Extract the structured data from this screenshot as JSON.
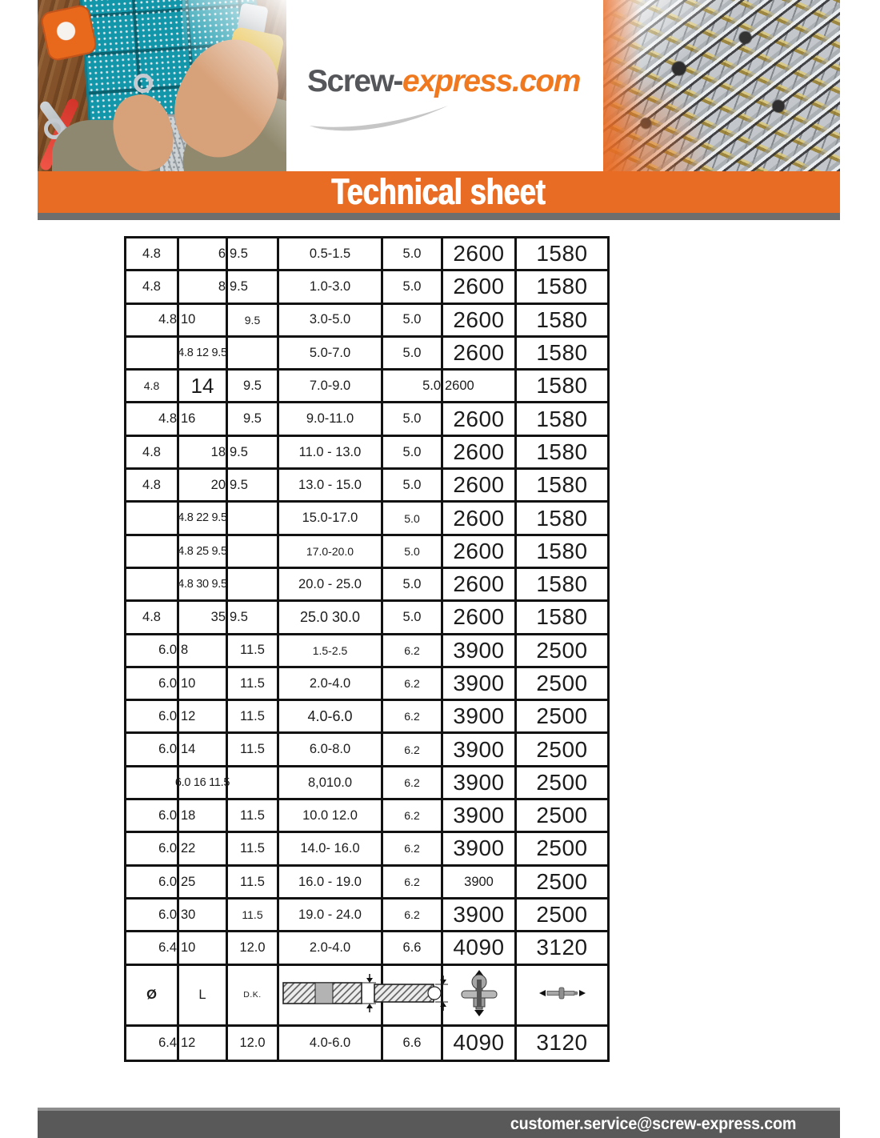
{
  "logo": {
    "prefix": "Screw-",
    "suffix": "express.com",
    "prefix_color": "#54565a",
    "suffix_color": "#f0791f"
  },
  "banner": {
    "title": "Technical sheet",
    "bg_color": "#e96c24"
  },
  "footer": {
    "email": "customer.service@screw-express.com",
    "bg_color": "#595959"
  },
  "colors": {
    "table_border": "#121212",
    "strip_gray": "#6e6e6e"
  },
  "table": {
    "legend_icons": [
      "clamped-plates-icon",
      "drilled-plate-icon",
      "rivet-vertical-arrows-icon",
      "rivet-horizontal-arrows-icon"
    ],
    "rows": [
      {
        "cells": [
          {
            "t": "4.8",
            "c": "al-c fs-s"
          },
          {
            "t": "6",
            "c": "al-r fs-s"
          },
          {
            "t": "9.5",
            "c": "al-l fs-s"
          },
          {
            "t": "0.5-1.5",
            "c": "al-c fs-s"
          },
          {
            "t": "5.0",
            "c": "al-c fs-s"
          },
          {
            "t": "2600",
            "c": "al-c fs-b"
          },
          {
            "t": "1580",
            "c": "al-c fs-b"
          }
        ]
      },
      {
        "cells": [
          {
            "t": "4.8",
            "c": "al-c fs-s"
          },
          {
            "t": "8",
            "c": "al-r fs-s"
          },
          {
            "t": "9.5",
            "c": "al-l fs-s"
          },
          {
            "t": "1.0-3.0",
            "c": "al-c fs-s"
          },
          {
            "t": "5.0",
            "c": "al-c fs-s"
          },
          {
            "t": "2600",
            "c": "al-c fs-b"
          },
          {
            "t": "1580",
            "c": "al-c fs-b"
          }
        ]
      },
      {
        "cells": [
          {
            "t": "4.8",
            "c": "al-r fs-s"
          },
          {
            "t": "10",
            "c": "al-l fs-s"
          },
          {
            "t": "9.5",
            "c": "al-c fs-xs"
          },
          {
            "t": "3.0-5.0",
            "c": "al-c fs-s"
          },
          {
            "t": "5.0",
            "c": "al-c fs-s"
          },
          {
            "t": "2600",
            "c": "al-c fs-b"
          },
          {
            "t": "1580",
            "c": "al-c fs-b"
          }
        ]
      },
      {
        "cells": [
          {
            "t": "",
            "c": ""
          },
          {
            "t": "4.8 12 9.5",
            "c": "al-c fs-sp spanover"
          },
          {
            "t": "",
            "c": ""
          },
          {
            "t": "5.0-7.0",
            "c": "al-c fs-s"
          },
          {
            "t": "5.0",
            "c": "al-c fs-s"
          },
          {
            "t": "2600",
            "c": "al-c fs-b"
          },
          {
            "t": "1580",
            "c": "al-c fs-b"
          }
        ]
      },
      {
        "cells": [
          {
            "t": "4.8",
            "c": "al-c fs-xs"
          },
          {
            "t": "14",
            "c": "al-c fs-lg"
          },
          {
            "t": "9.5",
            "c": "al-c fs-s"
          },
          {
            "t": "7.0-9.0",
            "c": "al-c fs-s"
          },
          {
            "t": "5.0",
            "c": "al-r fs-s"
          },
          {
            "t": "2600",
            "c": "al-l fs-s"
          },
          {
            "t": "1580",
            "c": "al-c fs-b"
          }
        ]
      },
      {
        "cells": [
          {
            "t": "4.8",
            "c": "al-r fs-s"
          },
          {
            "t": "16",
            "c": "al-l fs-s"
          },
          {
            "t": "9.5",
            "c": "al-c fs-s"
          },
          {
            "t": "9.0-11.0",
            "c": "al-c fs-s"
          },
          {
            "t": "5.0",
            "c": "al-c fs-s"
          },
          {
            "t": "2600",
            "c": "al-c fs-b"
          },
          {
            "t": "1580",
            "c": "al-c fs-b"
          }
        ]
      },
      {
        "cells": [
          {
            "t": "4.8",
            "c": "al-c fs-s"
          },
          {
            "t": "18",
            "c": "al-r fs-s"
          },
          {
            "t": "9.5",
            "c": "al-l fs-s"
          },
          {
            "t": "11.0 - 13.0",
            "c": "al-c fs-s"
          },
          {
            "t": "5.0",
            "c": "al-c fs-s"
          },
          {
            "t": "2600",
            "c": "al-c fs-b"
          },
          {
            "t": "1580",
            "c": "al-c fs-b"
          }
        ]
      },
      {
        "cells": [
          {
            "t": "4.8",
            "c": "al-c fs-s"
          },
          {
            "t": "20",
            "c": "al-r fs-s"
          },
          {
            "t": "9.5",
            "c": "al-l fs-s"
          },
          {
            "t": "13.0 - 15.0",
            "c": "al-c fs-s"
          },
          {
            "t": "5.0",
            "c": "al-c fs-s"
          },
          {
            "t": "2600",
            "c": "al-c fs-b"
          },
          {
            "t": "1580",
            "c": "al-c fs-b"
          }
        ]
      },
      {
        "cells": [
          {
            "t": "",
            "c": ""
          },
          {
            "t": "4.8 22 9.5",
            "c": "al-c fs-sp spanover"
          },
          {
            "t": "",
            "c": ""
          },
          {
            "t": "15.0-17.0",
            "c": "al-c fs-s"
          },
          {
            "t": "5.0",
            "c": "al-c fs-xs"
          },
          {
            "t": "2600",
            "c": "al-c fs-b"
          },
          {
            "t": "1580",
            "c": "al-c fs-b"
          }
        ]
      },
      {
        "cells": [
          {
            "t": "",
            "c": ""
          },
          {
            "t": "4.8 25 9.5",
            "c": "al-c fs-sp spanover"
          },
          {
            "t": "",
            "c": ""
          },
          {
            "t": "17.0-20.0",
            "c": "al-c fs-xs"
          },
          {
            "t": "5.0",
            "c": "al-c fs-xs"
          },
          {
            "t": "2600",
            "c": "al-c fs-b"
          },
          {
            "t": "1580",
            "c": "al-c fs-b"
          }
        ]
      },
      {
        "cells": [
          {
            "t": "",
            "c": ""
          },
          {
            "t": "4.8 30 9.5",
            "c": "al-c fs-sp spanover"
          },
          {
            "t": "",
            "c": ""
          },
          {
            "t": "20.0 - 25.0",
            "c": "al-c fs-s"
          },
          {
            "t": "5.0",
            "c": "al-c fs-s"
          },
          {
            "t": "2600",
            "c": "al-c fs-b"
          },
          {
            "t": "1580",
            "c": "al-c fs-b"
          }
        ]
      },
      {
        "cells": [
          {
            "t": "4.8",
            "c": "al-c fs-s"
          },
          {
            "t": "35",
            "c": "al-r fs-s"
          },
          {
            "t": "9.5",
            "c": "al-l fs-s"
          },
          {
            "t": "25.0 30.0",
            "c": "al-c fs-md"
          },
          {
            "t": "5.0",
            "c": "al-c fs-s"
          },
          {
            "t": "2600",
            "c": "al-c fs-b"
          },
          {
            "t": "1580",
            "c": "al-c fs-b"
          }
        ]
      },
      {
        "cells": [
          {
            "t": "6.0",
            "c": "al-r fs-s"
          },
          {
            "t": "8",
            "c": "al-l fs-s"
          },
          {
            "t": "11.5",
            "c": "al-c fs-s"
          },
          {
            "t": "1.5-2.5",
            "c": "al-c fs-xs"
          },
          {
            "t": "6.2",
            "c": "al-c fs-xs"
          },
          {
            "t": "3900",
            "c": "al-c fs-b"
          },
          {
            "t": "2500",
            "c": "al-c fs-b"
          }
        ]
      },
      {
        "cells": [
          {
            "t": "6.0",
            "c": "al-r fs-s"
          },
          {
            "t": "10",
            "c": "al-l fs-s"
          },
          {
            "t": "11.5",
            "c": "al-c fs-s"
          },
          {
            "t": "2.0-4.0",
            "c": "al-c fs-s"
          },
          {
            "t": "6.2",
            "c": "al-c fs-xs"
          },
          {
            "t": "3900",
            "c": "al-c fs-b"
          },
          {
            "t": "2500",
            "c": "al-c fs-b"
          }
        ]
      },
      {
        "cells": [
          {
            "t": "6.0",
            "c": "al-r fs-s"
          },
          {
            "t": "12",
            "c": "al-l fs-s"
          },
          {
            "t": "11.5",
            "c": "al-c fs-s"
          },
          {
            "t": "4.0-6.0",
            "c": "al-c fs-md"
          },
          {
            "t": "6.2",
            "c": "al-c fs-xs"
          },
          {
            "t": "3900",
            "c": "al-c fs-b"
          },
          {
            "t": "2500",
            "c": "al-c fs-b"
          }
        ]
      },
      {
        "cells": [
          {
            "t": "6.0",
            "c": "al-r fs-s"
          },
          {
            "t": "14",
            "c": "al-l fs-s"
          },
          {
            "t": "11.5",
            "c": "al-c fs-s"
          },
          {
            "t": "6.0-8.0",
            "c": "al-c fs-s"
          },
          {
            "t": "6.2",
            "c": "al-c fs-xs"
          },
          {
            "t": "3900",
            "c": "al-c fs-b"
          },
          {
            "t": "2500",
            "c": "al-c fs-b"
          }
        ]
      },
      {
        "cells": [
          {
            "t": "",
            "c": ""
          },
          {
            "t": "6.0 16 11.5",
            "c": "al-c fs-sp spanover"
          },
          {
            "t": "",
            "c": ""
          },
          {
            "t": "8,010.0",
            "c": "al-c fs-s"
          },
          {
            "t": "6.2",
            "c": "al-c fs-xs"
          },
          {
            "t": "3900",
            "c": "al-c fs-b"
          },
          {
            "t": "2500",
            "c": "al-c fs-b"
          }
        ]
      },
      {
        "cells": [
          {
            "t": "6.0",
            "c": "al-r fs-s"
          },
          {
            "t": "18",
            "c": "al-l fs-s"
          },
          {
            "t": "11.5",
            "c": "al-c fs-s"
          },
          {
            "t": "10.0 12.0",
            "c": "al-c fs-s"
          },
          {
            "t": "6.2",
            "c": "al-c fs-xs"
          },
          {
            "t": "3900",
            "c": "al-c fs-b"
          },
          {
            "t": "2500",
            "c": "al-c fs-b"
          }
        ]
      },
      {
        "cells": [
          {
            "t": "6.0",
            "c": "al-r fs-s"
          },
          {
            "t": "22",
            "c": "al-l fs-s"
          },
          {
            "t": "11.5",
            "c": "al-c fs-s"
          },
          {
            "t": "14.0- 16.0",
            "c": "al-c fs-s"
          },
          {
            "t": "6.2",
            "c": "al-c fs-xs"
          },
          {
            "t": "3900",
            "c": "al-c fs-b"
          },
          {
            "t": "2500",
            "c": "al-c fs-b"
          }
        ]
      },
      {
        "cells": [
          {
            "t": "6.0",
            "c": "al-r fs-s"
          },
          {
            "t": "25",
            "c": "al-l fs-s"
          },
          {
            "t": "11.5",
            "c": "al-c fs-s"
          },
          {
            "t": "16.0 - 19.0",
            "c": "al-c fs-s"
          },
          {
            "t": "6.2",
            "c": "al-c fs-xs"
          },
          {
            "t": "3900",
            "c": "al-c fs-s"
          },
          {
            "t": "2500",
            "c": "al-c fs-b"
          }
        ]
      },
      {
        "cells": [
          {
            "t": "6.0",
            "c": "al-r fs-s"
          },
          {
            "t": "30",
            "c": "al-l fs-s"
          },
          {
            "t": "11.5",
            "c": "al-c fs-xs"
          },
          {
            "t": "19.0 - 24.0",
            "c": "al-c fs-s"
          },
          {
            "t": "6.2",
            "c": "al-c fs-xs"
          },
          {
            "t": "3900",
            "c": "al-c fs-b"
          },
          {
            "t": "2500",
            "c": "al-c fs-b"
          }
        ]
      },
      {
        "cells": [
          {
            "t": "6.4",
            "c": "al-r fs-s"
          },
          {
            "t": "10",
            "c": "al-l fs-s"
          },
          {
            "t": "12.0",
            "c": "al-c fs-s"
          },
          {
            "t": "2.0-4.0",
            "c": "al-c fs-s"
          },
          {
            "t": "6.6",
            "c": "al-c fs-s"
          },
          {
            "t": "4090",
            "c": "al-c fs-b"
          },
          {
            "t": "3120",
            "c": "al-c fs-b"
          }
        ]
      },
      {
        "legend": true,
        "cells": [
          {
            "t": "Ø",
            "c": "al-c fs-s bold"
          },
          {
            "t": "L",
            "c": "al-c fs-s"
          },
          {
            "t": "D.K.",
            "c": "al-c fs-xxs"
          },
          {
            "i": "clamped-plates-icon"
          },
          {
            "i": "drilled-plate-icon"
          },
          {
            "i": "rivet-vertical-arrows-icon"
          },
          {
            "i": "rivet-horizontal-arrows-icon"
          }
        ]
      },
      {
        "cells": [
          {
            "t": "6.4",
            "c": "al-r fs-s"
          },
          {
            "t": "12",
            "c": "al-l fs-s"
          },
          {
            "t": "12.0",
            "c": "al-c fs-s"
          },
          {
            "t": "4.0-6.0",
            "c": "al-c fs-s"
          },
          {
            "t": "6.6",
            "c": "al-c fs-s"
          },
          {
            "t": "4090",
            "c": "al-c fs-b"
          },
          {
            "t": "3120",
            "c": "al-c fs-b"
          }
        ]
      }
    ]
  }
}
